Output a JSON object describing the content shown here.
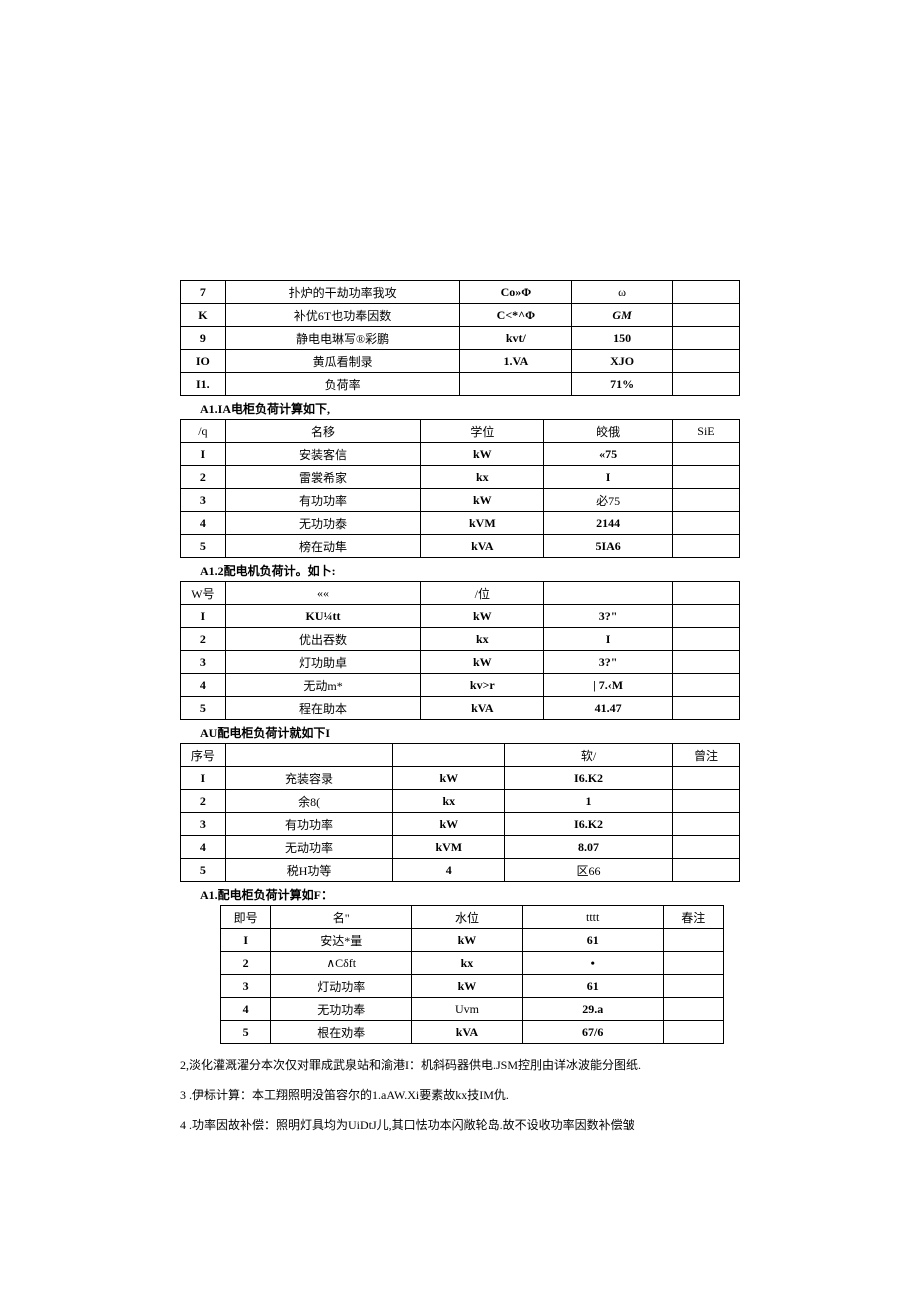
{
  "table1": {
    "rows": [
      [
        "7",
        "扑炉的干劫功率我攻",
        "Co»Φ",
        "ω",
        ""
      ],
      [
        "K",
        "补优6T也功奉因数",
        "C<*^Φ",
        "GM",
        ""
      ],
      [
        "9",
        "静电电琳写®彩鹏",
        "kvt/",
        "150",
        ""
      ],
      [
        "IO",
        "黄瓜看制录",
        "1.VA",
        "XJO",
        ""
      ],
      [
        "I1.",
        "负荷率",
        "",
        "71%",
        ""
      ]
    ]
  },
  "caption2": "A1.IA电柜负荷计算如下,",
  "table2": {
    "header": [
      "/q",
      "名移",
      "学位",
      "皎俄",
      "SiE"
    ],
    "rows": [
      [
        "I",
        "安装客信",
        "kW",
        "«75",
        ""
      ],
      [
        "2",
        "雷裳希家",
        "kx",
        "I",
        ""
      ],
      [
        "3",
        "有功功率",
        "kW",
        "必75",
        ""
      ],
      [
        "4",
        "无功功泰",
        "kVM",
        "2144",
        ""
      ],
      [
        "5",
        "榜在动隼",
        "kVA",
        "5IA6",
        ""
      ]
    ]
  },
  "caption3": "A1.2配电机负荷计。如卜:",
  "table3": {
    "header": [
      "W号",
      "««",
      "/位",
      "",
      ""
    ],
    "rows": [
      [
        "I",
        "KU¼tt",
        "kW",
        "3?\"",
        ""
      ],
      [
        "2",
        "优出吞数",
        "kx",
        "I",
        ""
      ],
      [
        "3",
        "灯功助卓",
        "kW",
        "3?\"",
        ""
      ],
      [
        "4",
        "无动m*",
        "kv>r",
        "| 7.‹M",
        ""
      ],
      [
        "5",
        "程在助本",
        "kVA",
        "41.47",
        ""
      ]
    ]
  },
  "caption4": "AU配电柜负荷计就如下I",
  "table4": {
    "header": [
      "序号",
      "",
      "",
      "软/",
      "曾注"
    ],
    "rows": [
      [
        "I",
        "充装容录",
        "kW",
        "I6.K2",
        ""
      ],
      [
        "2",
        "余8(",
        "kx",
        "1",
        ""
      ],
      [
        "3",
        "有功功率",
        "kW",
        "I6.K2",
        ""
      ],
      [
        "4",
        "无动功率",
        "kVM",
        "8.07",
        ""
      ],
      [
        "5",
        "税H功等",
        "4",
        "区66",
        ""
      ]
    ]
  },
  "caption5": "A1.配电柜负荷计算如F：",
  "table5": {
    "header": [
      "即号",
      "名\"",
      "水位",
      "tttt",
      "春注"
    ],
    "rows": [
      [
        "I",
        "安达*量",
        "kW",
        "61",
        ""
      ],
      [
        "2",
        "∧Cδft",
        "kx",
        "•",
        ""
      ],
      [
        "3",
        "灯动功率",
        "kW",
        "61",
        ""
      ],
      [
        "4",
        "无功功奉",
        "Uvm",
        "29.a",
        ""
      ],
      [
        "5",
        "根在劝奉",
        "kVA",
        "67/6",
        ""
      ]
    ]
  },
  "para1": "2,淡化灌溉濯分本次仅对罪成武泉站和渝港I：机斜码器供电.JSM控刖由详冰波能分图纸.",
  "para2": "3  .伊标计算：本工翔照明没笛容尔的1.aAW.Xi要素故kx技IM仇.",
  "para3": "4  .功率因故补偿：照明灯具均为UiDtJ儿,其口怯功本闪敞轮岛.故不设收功率因数补偿皱"
}
